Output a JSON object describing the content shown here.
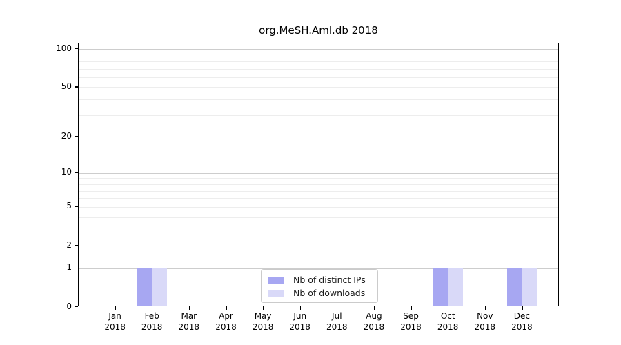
{
  "chart_data": {
    "type": "bar",
    "title": "org.MeSH.Aml.db 2018",
    "categories": [
      "Jan 2018",
      "Feb 2018",
      "Mar 2018",
      "Apr 2018",
      "May 2018",
      "Jun 2018",
      "Jul 2018",
      "Aug 2018",
      "Sep 2018",
      "Oct 2018",
      "Nov 2018",
      "Dec 2018"
    ],
    "months": [
      "Jan",
      "Feb",
      "Mar",
      "Apr",
      "May",
      "Jun",
      "Jul",
      "Aug",
      "Sep",
      "Oct",
      "Nov",
      "Dec"
    ],
    "year": "2018",
    "series": [
      {
        "name": "Nb of distinct IPs",
        "color": "#a7a7f2",
        "values": [
          0,
          1,
          0,
          0,
          0,
          0,
          0,
          0,
          0,
          1,
          0,
          1
        ]
      },
      {
        "name": "Nb of downloads",
        "color": "#d9d9f8",
        "values": [
          0,
          1,
          0,
          0,
          0,
          0,
          0,
          0,
          0,
          1,
          0,
          1
        ]
      }
    ],
    "yscale": "log1p",
    "ylim": [
      0,
      100
    ],
    "ytick_labels": [
      "100",
      "50",
      "20",
      "10",
      "5",
      "2",
      "1",
      "0"
    ],
    "ytick_values": [
      100,
      50,
      20,
      10,
      5,
      2,
      1,
      0
    ],
    "grid": "horizontal, minor log gridlines on",
    "grid_minor_values": [
      2,
      3,
      4,
      5,
      6,
      7,
      8,
      9,
      20,
      30,
      40,
      50,
      60,
      70,
      80,
      90
    ],
    "grid_major_values": [
      1,
      10,
      100
    ],
    "legend_position": "inside bottom-center",
    "colors": {
      "distinct_ips_bar": "#a7a7f2",
      "downloads_bar": "#d9d9f8",
      "grid_minor": "#ededed",
      "grid_major": "#cdcdcd",
      "axis_frame": "#000000"
    }
  }
}
